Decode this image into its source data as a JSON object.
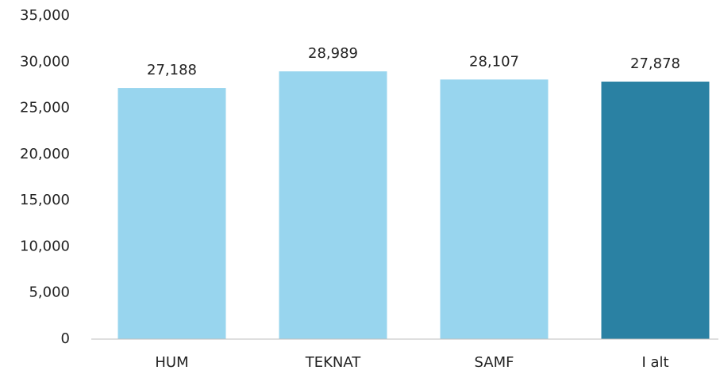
{
  "chart_data": {
    "type": "bar",
    "categories": [
      "HUM",
      "TEKNAT",
      "SAMF",
      "I alt"
    ],
    "values": [
      27188,
      28989,
      28107,
      27878
    ],
    "value_labels": [
      "27,188",
      "28,989",
      "28,107",
      "27,878"
    ],
    "colors": [
      "#98d5ee",
      "#98d5ee",
      "#98d5ee",
      "#2a81a3"
    ],
    "ylim": [
      0,
      35000
    ],
    "yticks": [
      0,
      {
        "value": 5000,
        "label": "5,000"
      },
      {
        "value": 10000,
        "label": "10,000"
      },
      {
        "value": 15000,
        "label": "15,000"
      },
      {
        "value": 20000,
        "label": "20,000"
      },
      {
        "value": 25000,
        "label": "25,000"
      },
      {
        "value": 30000,
        "label": "30,000"
      },
      {
        "value": 35000,
        "label": "35,000"
      }
    ],
    "grid": false
  }
}
